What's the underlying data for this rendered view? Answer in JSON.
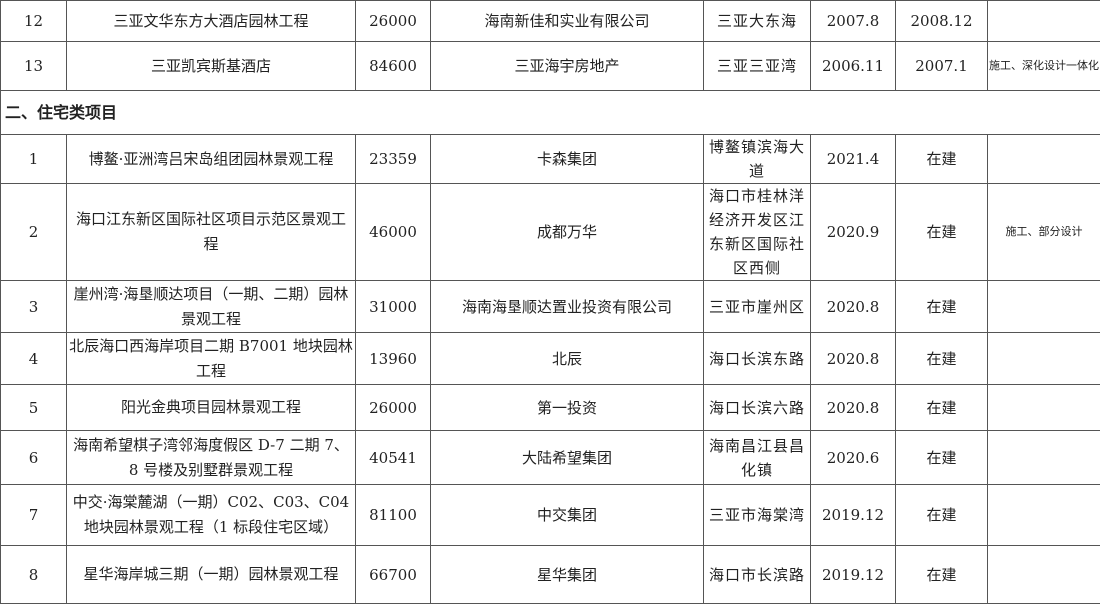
{
  "section_title": "二、住宅类项目",
  "rows_before": [
    {
      "no": "12",
      "name": "三亚文华东方大酒店园林工程",
      "area": "26000",
      "client": "海南新佳和实业有限公司",
      "location": "三亚大东海",
      "start": "2007.8",
      "end": "2008.12",
      "note": ""
    },
    {
      "no": "13",
      "name": "三亚凯宾斯基酒店",
      "area": "84600",
      "client": "三亚海宇房地产",
      "location": "三亚三亚湾",
      "start": "2006.11",
      "end": "2007.1",
      "note": "施工、深化设计一体化"
    }
  ],
  "rows": [
    {
      "no": "1",
      "name": "博鳌·亚洲湾吕宋岛组团园林景观工程",
      "area": "23359",
      "client": "卡森集团",
      "location": "博鳌镇滨海大道",
      "start": "2021.4",
      "end": "在建",
      "note": ""
    },
    {
      "no": "2",
      "name": "海口江东新区国际社区项目示范区景观工程",
      "area": "46000",
      "client": "成都万华",
      "location": "海口市桂林洋经济开发区江东新区国际社区西侧",
      "start": "2020.9",
      "end": "在建",
      "note": "施工、部分设计"
    },
    {
      "no": "3",
      "name": "崖州湾·海垦顺达项目（一期、二期）园林景观工程",
      "area": "31000",
      "client": "海南海垦顺达置业投资有限公司",
      "location": "三亚市崖州区",
      "start": "2020.8",
      "end": "在建",
      "note": ""
    },
    {
      "no": "4",
      "name": "北辰海口西海岸项目二期 B7001 地块园林工程",
      "area": "13960",
      "client": "北辰",
      "location": "海口长滨东路",
      "start": "2020.8",
      "end": "在建",
      "note": ""
    },
    {
      "no": "5",
      "name": "阳光金典项目园林景观工程",
      "area": "26000",
      "client": "第一投资",
      "location": "海口长滨六路",
      "start": "2020.8",
      "end": "在建",
      "note": ""
    },
    {
      "no": "6",
      "name": "海南希望棋子湾邻海度假区 D-7 二期 7、8 号楼及别墅群景观工程",
      "area": "40541",
      "client": "大陆希望集团",
      "location": "海南昌江县昌化镇",
      "start": "2020.6",
      "end": "在建",
      "note": ""
    },
    {
      "no": "7",
      "name": "中交·海棠麓湖（一期）C02、C03、C04 地块园林景观工程（1 标段住宅区域）",
      "area": "81100",
      "client": "中交集团",
      "location": "三亚市海棠湾",
      "start": "2019.12",
      "end": "在建",
      "note": ""
    },
    {
      "no": "8",
      "name": "星华海岸城三期（一期）园林景观工程",
      "area": "66700",
      "client": "星华集团",
      "location": "海口市长滨路",
      "start": "2019.12",
      "end": "在建",
      "note": ""
    }
  ]
}
